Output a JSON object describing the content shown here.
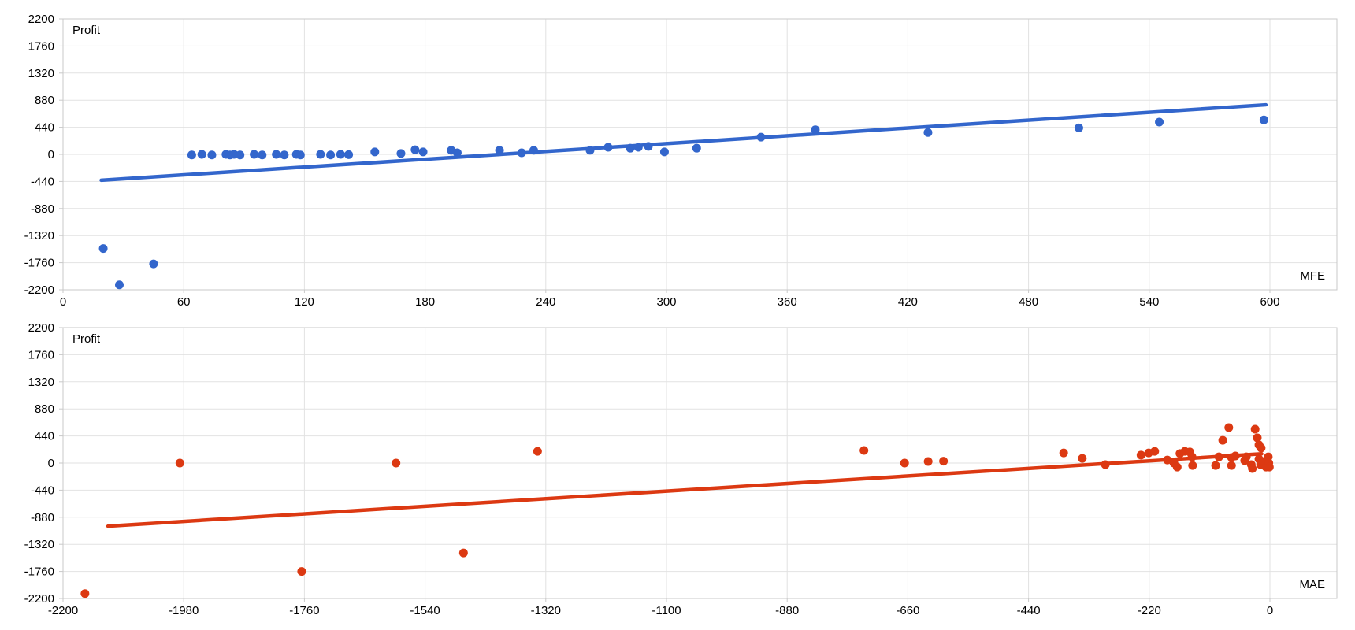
{
  "chart_data": [
    {
      "type": "scatter",
      "title": "",
      "ylabel": "Profit",
      "xlabel": "MFE",
      "series_color": "#3366cc",
      "grid": true,
      "legend": "none",
      "xlim": [
        0,
        600
      ],
      "ylim": [
        -2200,
        2200
      ],
      "x_ticks": [
        0,
        60,
        120,
        180,
        240,
        300,
        360,
        420,
        480,
        540,
        600
      ],
      "y_ticks": [
        2200,
        1760,
        1320,
        880,
        440,
        0,
        -440,
        -880,
        -1320,
        -1760,
        -2200
      ],
      "points": [
        [
          20,
          -1530
        ],
        [
          28,
          -2120
        ],
        [
          45,
          -1780
        ],
        [
          64,
          -10
        ],
        [
          69,
          0
        ],
        [
          74,
          -10
        ],
        [
          81,
          0
        ],
        [
          83,
          -10
        ],
        [
          85,
          0
        ],
        [
          88,
          -10
        ],
        [
          95,
          0
        ],
        [
          99,
          -10
        ],
        [
          106,
          0
        ],
        [
          110,
          -10
        ],
        [
          116,
          0
        ],
        [
          118,
          -10
        ],
        [
          128,
          0
        ],
        [
          133,
          -10
        ],
        [
          138,
          0
        ],
        [
          142,
          -5
        ],
        [
          155,
          40
        ],
        [
          168,
          15
        ],
        [
          175,
          75
        ],
        [
          179,
          40
        ],
        [
          193,
          65
        ],
        [
          196,
          25
        ],
        [
          217,
          65
        ],
        [
          228,
          25
        ],
        [
          234,
          65
        ],
        [
          262,
          65
        ],
        [
          271,
          115
        ],
        [
          282,
          100
        ],
        [
          286,
          115
        ],
        [
          291,
          130
        ],
        [
          299,
          40
        ],
        [
          315,
          100
        ],
        [
          347,
          280
        ],
        [
          374,
          400
        ],
        [
          430,
          355
        ],
        [
          505,
          430
        ],
        [
          545,
          525
        ],
        [
          597,
          560
        ]
      ],
      "trendline": [
        [
          19,
          -420
        ],
        [
          598,
          805
        ]
      ]
    },
    {
      "type": "scatter",
      "title": "",
      "ylabel": "Profit",
      "xlabel": "MAE",
      "series_color": "#dc3912",
      "grid": true,
      "legend": "none",
      "xlim": [
        -2200,
        0
      ],
      "ylim": [
        -2200,
        2200
      ],
      "x_ticks": [
        -2200,
        -1980,
        -1760,
        -1540,
        -1320,
        -1100,
        -880,
        -660,
        -440,
        -220,
        0
      ],
      "y_ticks": [
        2200,
        1760,
        1320,
        880,
        440,
        0,
        -440,
        -880,
        -1320,
        -1760,
        -2200
      ],
      "points": [
        [
          -2160,
          -2120
        ],
        [
          -1987,
          0
        ],
        [
          -1765,
          -1760
        ],
        [
          -1593,
          0
        ],
        [
          -1470,
          -1460
        ],
        [
          -1335,
          190
        ],
        [
          -740,
          205
        ],
        [
          -666,
          0
        ],
        [
          -623,
          25
        ],
        [
          -595,
          30
        ],
        [
          -376,
          165
        ],
        [
          -342,
          75
        ],
        [
          -300,
          -25
        ],
        [
          -235,
          130
        ],
        [
          -221,
          165
        ],
        [
          -210,
          190
        ],
        [
          -187,
          50
        ],
        [
          -175,
          0
        ],
        [
          -169,
          -65
        ],
        [
          -164,
          155
        ],
        [
          -155,
          190
        ],
        [
          -146,
          180
        ],
        [
          -142,
          100
        ],
        [
          -141,
          -40
        ],
        [
          -99,
          -40
        ],
        [
          -93,
          100
        ],
        [
          -86,
          370
        ],
        [
          -75,
          575
        ],
        [
          -70,
          90
        ],
        [
          -70,
          -40
        ],
        [
          -63,
          115
        ],
        [
          -46,
          40
        ],
        [
          -43,
          100
        ],
        [
          -34,
          -25
        ],
        [
          -32,
          -90
        ],
        [
          -27,
          550
        ],
        [
          -23,
          410
        ],
        [
          -20,
          295
        ],
        [
          -20,
          65
        ],
        [
          -17,
          -25
        ],
        [
          -16,
          245
        ],
        [
          -11,
          25
        ],
        [
          -7,
          -65
        ],
        [
          -3,
          100
        ],
        [
          -2,
          0
        ],
        [
          -1,
          -65
        ]
      ],
      "trendline": [
        [
          -2118,
          -1025
        ],
        [
          -15,
          150
        ]
      ]
    }
  ],
  "style": {
    "grid_color": "#e2e2e2",
    "border_color": "#c9c9c9",
    "tick_label_color": "#000000",
    "background": "#ffffff"
  }
}
